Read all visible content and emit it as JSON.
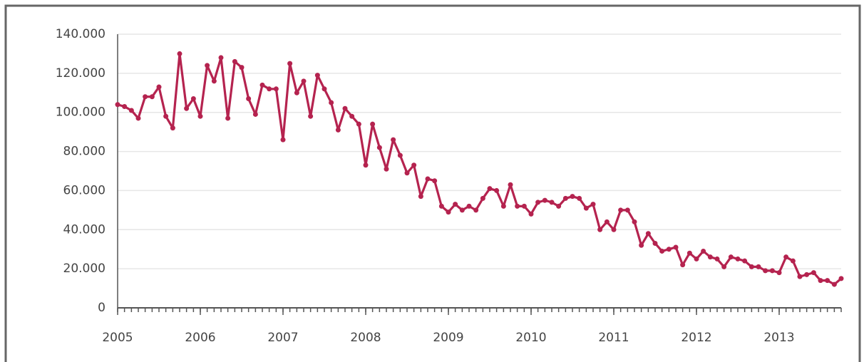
{
  "chart_data": {
    "type": "line",
    "x": [
      2005,
      2005.083,
      2005.167,
      2005.25,
      2005.333,
      2005.417,
      2005.5,
      2005.583,
      2005.667,
      2005.75,
      2005.833,
      2005.917,
      2006,
      2006.083,
      2006.167,
      2006.25,
      2006.333,
      2006.417,
      2006.5,
      2006.583,
      2006.667,
      2006.75,
      2006.833,
      2006.917,
      2007,
      2007.083,
      2007.167,
      2007.25,
      2007.333,
      2007.417,
      2007.5,
      2007.583,
      2007.667,
      2007.75,
      2007.833,
      2007.917,
      2008,
      2008.083,
      2008.167,
      2008.25,
      2008.333,
      2008.417,
      2008.5,
      2008.583,
      2008.667,
      2008.75,
      2008.833,
      2008.917,
      2009,
      2009.083,
      2009.167,
      2009.25,
      2009.333,
      2009.417,
      2009.5,
      2009.583,
      2009.667,
      2009.75,
      2009.833,
      2009.917,
      2010,
      2010.083,
      2010.167,
      2010.25,
      2010.333,
      2010.417,
      2010.5,
      2010.583,
      2010.667,
      2010.75,
      2010.833,
      2010.917,
      2011,
      2011.083,
      2011.167,
      2011.25,
      2011.333,
      2011.417,
      2011.5,
      2011.583,
      2011.667,
      2011.75,
      2011.833,
      2011.917,
      2012,
      2012.083,
      2012.167,
      2012.25,
      2012.333,
      2012.417,
      2012.5,
      2012.583,
      2012.667,
      2012.75,
      2012.833,
      2012.917,
      2013,
      2013.083,
      2013.167,
      2013.25,
      2013.333,
      2013.417,
      2013.5,
      2013.583,
      2013.667,
      2013.75
    ],
    "series": [
      {
        "color": "#b5234f",
        "values": [
          104000,
          103000,
          101000,
          97000,
          108000,
          108000,
          113000,
          98000,
          92000,
          130000,
          102000,
          107000,
          98000,
          124000,
          116000,
          128000,
          97000,
          126000,
          123000,
          107000,
          99000,
          114000,
          112000,
          112000,
          86000,
          125000,
          110000,
          116000,
          98000,
          119000,
          112000,
          105000,
          91000,
          102000,
          98000,
          94000,
          73000,
          94000,
          82000,
          71000,
          86000,
          78000,
          69000,
          73000,
          57000,
          66000,
          65000,
          52000,
          49000,
          53000,
          50000,
          52000,
          50000,
          56000,
          61000,
          60000,
          52000,
          63000,
          52000,
          52000,
          48000,
          54000,
          55000,
          54000,
          52000,
          56000,
          57000,
          56000,
          51000,
          53000,
          40000,
          44000,
          40000,
          50000,
          50000,
          44000,
          32000,
          38000,
          33000,
          29000,
          30000,
          31000,
          22000,
          28000,
          25000,
          29000,
          26000,
          25000,
          21000,
          26000,
          25000,
          24000,
          21000,
          21000,
          19000,
          19000,
          18000,
          26000,
          24000,
          16000,
          17000,
          18000,
          14000,
          14000,
          12000,
          15000
        ]
      }
    ],
    "xlim": [
      2005,
      2013.75
    ],
    "xticks": [
      2005,
      2006,
      2007,
      2008,
      2009,
      2010,
      2011,
      2012,
      2013
    ],
    "ylim": [
      0,
      140000
    ],
    "yticks": [
      0,
      {
        "value": 20000,
        "label": "20.000"
      },
      {
        "value": 40000,
        "label": "40.000"
      },
      {
        "value": 60000,
        "label": "60.000"
      },
      {
        "value": 80000,
        "label": "80.000"
      },
      {
        "value": 100000,
        "label": "100.000"
      },
      {
        "value": 120000,
        "label": "120.000"
      },
      {
        "value": 140000,
        "label": "140.000"
      }
    ],
    "grid": true
  }
}
